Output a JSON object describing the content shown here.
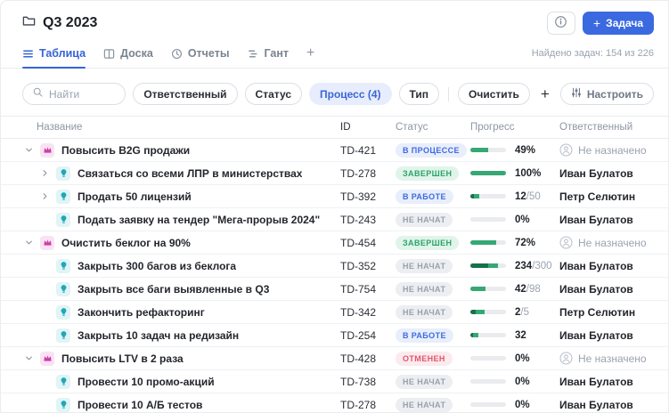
{
  "header": {
    "title": "Q3 2023",
    "info_icon": "info-icon",
    "add_task": {
      "icon": "plus-icon",
      "label": "Задача"
    },
    "found_text": "Найдено задач: 154 из 226",
    "tabs": [
      {
        "name": "tab-table",
        "icon": "table-icon",
        "label": "Таблица",
        "active": true
      },
      {
        "name": "tab-board",
        "icon": "board-icon",
        "label": "Доска",
        "active": false
      },
      {
        "name": "tab-reports",
        "icon": "clock-icon",
        "label": "Отчеты",
        "active": false
      },
      {
        "name": "tab-gantt",
        "icon": "gantt-icon",
        "label": "Гант",
        "active": false
      },
      {
        "name": "tab-add",
        "icon": null,
        "label": "+",
        "active": false
      }
    ]
  },
  "filters": {
    "search_placeholder": "Найти",
    "search_icon": "search-icon",
    "pills": [
      {
        "name": "filter-assignee",
        "label": "Ответственный",
        "active": false
      },
      {
        "name": "filter-status",
        "label": "Статус",
        "active": false
      },
      {
        "name": "filter-process",
        "label": "Процесс (4)",
        "active": true
      },
      {
        "name": "filter-type",
        "label": "Тип",
        "active": false
      }
    ],
    "clear_label": "Очистить",
    "add_filter_label": "+",
    "configure": {
      "icon": "sliders-icon",
      "label": "Настроить"
    }
  },
  "table": {
    "columns": [
      "Название",
      "ID",
      "Статус",
      "Прогресс",
      "Ответственный"
    ],
    "rows": [
      {
        "type": "goal",
        "expander": "chevron-down-icon",
        "type_icon": "crown-icon",
        "name": "Повысить B2G продажи",
        "id": "TD-421",
        "status": {
          "label": "В ПРОЦЕССЕ",
          "kind": "process"
        },
        "progress": {
          "segments": [
            {
              "color": "mid",
              "pct": 49
            }
          ],
          "value": "49%",
          "total": ""
        },
        "assignee": {
          "name": "Не назначено",
          "unassigned": true
        }
      },
      {
        "type": "task",
        "expander": "chevron-right-icon",
        "type_icon": "bulb-icon",
        "name": "Связаться со всеми ЛПР в министерствах",
        "id": "TD-278",
        "status": {
          "label": "ЗАВЕРШЕН",
          "kind": "done"
        },
        "progress": {
          "segments": [
            {
              "color": "mid",
              "pct": 100
            }
          ],
          "value": "100%",
          "total": ""
        },
        "assignee": {
          "name": "Иван Булатов",
          "unassigned": false
        }
      },
      {
        "type": "task",
        "expander": "chevron-right-icon",
        "type_icon": "bulb-icon",
        "name": "Продать 50 лицензий",
        "id": "TD-392",
        "status": {
          "label": "В РАБОТЕ",
          "kind": "work"
        },
        "progress": {
          "segments": [
            {
              "color": "dark",
              "pct": 10
            },
            {
              "color": "mid",
              "pct": 14
            }
          ],
          "value": "12",
          "total": "/50"
        },
        "assignee": {
          "name": "Петр Селютин",
          "unassigned": false
        }
      },
      {
        "type": "task",
        "expander": "none",
        "type_icon": "bulb-icon",
        "name": "Подать заявку на тендер \"Мега-прорыв 2024\"",
        "id": "TD-243",
        "status": {
          "label": "НЕ НАЧАТ",
          "kind": "notstarted"
        },
        "progress": {
          "segments": [],
          "value": "0%",
          "total": ""
        },
        "assignee": {
          "name": "Иван Булатов",
          "unassigned": false
        }
      },
      {
        "type": "goal",
        "expander": "chevron-down-icon",
        "type_icon": "crown-icon",
        "name": "Очистить беклог на 90%",
        "id": "TD-454",
        "status": {
          "label": "ЗАВЕРШЕН",
          "kind": "done"
        },
        "progress": {
          "segments": [
            {
              "color": "mid",
              "pct": 72
            }
          ],
          "value": "72%",
          "total": ""
        },
        "assignee": {
          "name": "Не назначено",
          "unassigned": true
        }
      },
      {
        "type": "task",
        "expander": "none",
        "type_icon": "bulb-icon",
        "name": "Закрыть 300 багов из беклога",
        "id": "TD-352",
        "status": {
          "label": "НЕ НАЧАТ",
          "kind": "notstarted"
        },
        "progress": {
          "segments": [
            {
              "color": "dark",
              "pct": 50
            },
            {
              "color": "mid",
              "pct": 28
            }
          ],
          "value": "234",
          "total": "/300"
        },
        "assignee": {
          "name": "Иван Булатов",
          "unassigned": false
        }
      },
      {
        "type": "task",
        "expander": "none",
        "type_icon": "bulb-icon",
        "name": "Закрыть все баги выявленные в Q3",
        "id": "TD-754",
        "status": {
          "label": "НЕ НАЧАТ",
          "kind": "notstarted"
        },
        "progress": {
          "segments": [
            {
              "color": "mid",
              "pct": 43
            }
          ],
          "value": "42",
          "total": "/98"
        },
        "assignee": {
          "name": "Иван Булатов",
          "unassigned": false
        }
      },
      {
        "type": "task",
        "expander": "none",
        "type_icon": "bulb-icon",
        "name": "Закончить рефакторинг",
        "id": "TD-342",
        "status": {
          "label": "НЕ НАЧАТ",
          "kind": "notstarted"
        },
        "progress": {
          "segments": [
            {
              "color": "dark",
              "pct": 16
            },
            {
              "color": "mid",
              "pct": 24
            }
          ],
          "value": "2",
          "total": "/5"
        },
        "assignee": {
          "name": "Петр Селютин",
          "unassigned": false
        }
      },
      {
        "type": "task",
        "expander": "none",
        "type_icon": "bulb-icon",
        "name": "Закрыть 10 задач на редизайн",
        "id": "TD-254",
        "status": {
          "label": "В РАБОТЕ",
          "kind": "work"
        },
        "progress": {
          "segments": [
            {
              "color": "dark",
              "pct": 8
            },
            {
              "color": "mid",
              "pct": 14
            }
          ],
          "value": "32",
          "total": ""
        },
        "assignee": {
          "name": "Иван Булатов",
          "unassigned": false
        }
      },
      {
        "type": "goal",
        "expander": "chevron-down-icon",
        "type_icon": "crown-icon",
        "name": "Повысить LTV в 2 раза",
        "id": "TD-428",
        "status": {
          "label": "ОТМЕНЕН",
          "kind": "cancelled"
        },
        "progress": {
          "segments": [],
          "value": "0%",
          "total": ""
        },
        "assignee": {
          "name": "Не назначено",
          "unassigned": true
        }
      },
      {
        "type": "task",
        "expander": "none",
        "type_icon": "bulb-icon",
        "name": "Провести 10 промо-акций",
        "id": "TD-738",
        "status": {
          "label": "НЕ НАЧАТ",
          "kind": "notstarted"
        },
        "progress": {
          "segments": [],
          "value": "0%",
          "total": ""
        },
        "assignee": {
          "name": "Иван Булатов",
          "unassigned": false
        }
      },
      {
        "type": "task",
        "expander": "none",
        "type_icon": "bulb-icon",
        "name": "Провести 10 А/Б тестов",
        "id": "TD-278",
        "status": {
          "label": "НЕ НАЧАТ",
          "kind": "notstarted"
        },
        "progress": {
          "segments": [],
          "value": "0%",
          "total": ""
        },
        "assignee": {
          "name": "Иван Булатов",
          "unassigned": false
        }
      }
    ]
  },
  "colors": {
    "accent_blue": "#3b6ae0",
    "progress_dark_green": "#17714a",
    "progress_green": "#36a874",
    "status_blue": "#3d6be0",
    "status_green": "#2aa36a",
    "status_gray": "#99a1ad",
    "status_red": "#e2556a",
    "goal_icon_pink": "#cf3daa",
    "task_icon_teal": "#1fa8b8"
  }
}
